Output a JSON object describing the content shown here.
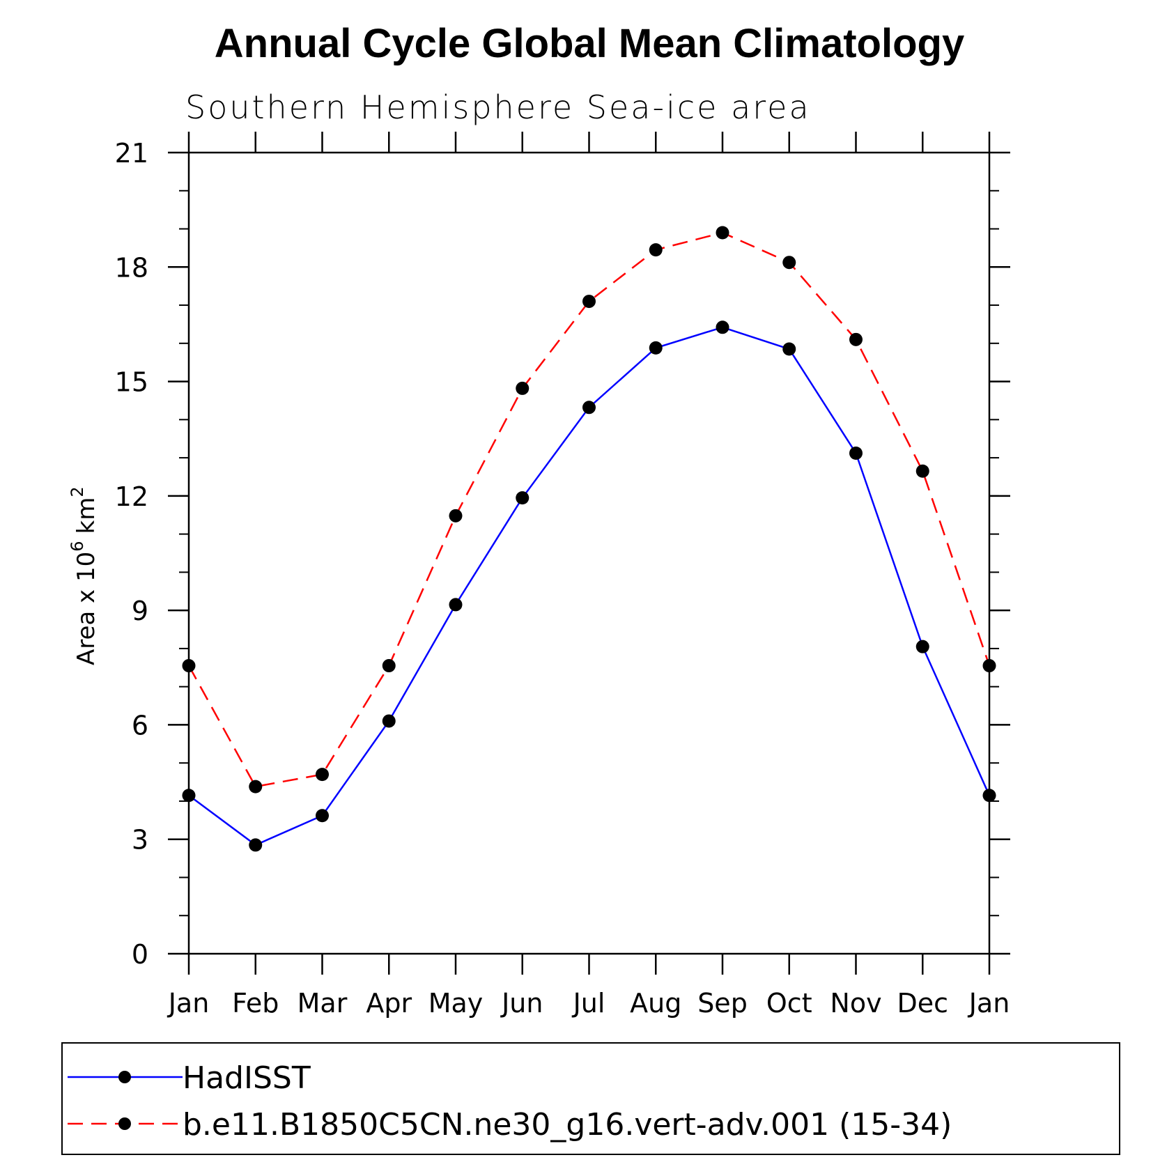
{
  "chart_data": {
    "type": "line",
    "title": "Annual Cycle Global Mean Climatology",
    "subtitle": "Southern Hemisphere Sea-ice area",
    "ylabel": "Area x 10",
    "ylabel_exp": "6",
    "ylabel_unit": "km",
    "ylabel_unit_exp": "2",
    "xlabel": "",
    "categories": [
      "Jan",
      "Feb",
      "Mar",
      "Apr",
      "May",
      "Jun",
      "Jul",
      "Aug",
      "Sep",
      "Oct",
      "Nov",
      "Dec",
      "Jan"
    ],
    "ylim": [
      0,
      21
    ],
    "yticks": [
      0,
      3,
      6,
      9,
      12,
      15,
      18,
      21
    ],
    "yminor_step": 1,
    "grid": false,
    "legend_position": "bottom",
    "series": [
      {
        "name": "HadISST",
        "color": "#0000ff",
        "dash": "solid",
        "marker": "filled-circle",
        "values": [
          4.15,
          2.85,
          3.62,
          6.1,
          9.15,
          11.95,
          14.32,
          15.88,
          16.42,
          15.85,
          13.12,
          8.05,
          4.15
        ]
      },
      {
        "name": "b.e11.B1850C5CN.ne30_g16.vert-adv.001 (15-34)",
        "color": "#ff0000",
        "dash": "dashed",
        "marker": "filled-circle",
        "values": [
          7.55,
          4.38,
          4.7,
          7.55,
          11.48,
          14.82,
          17.1,
          18.45,
          18.9,
          18.12,
          16.1,
          12.65,
          7.55
        ]
      }
    ]
  }
}
